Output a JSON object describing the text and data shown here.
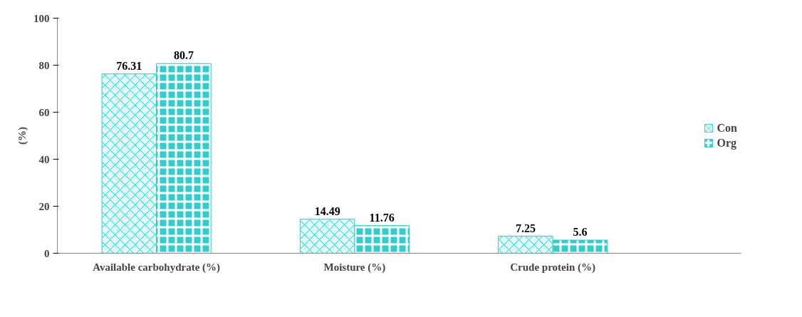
{
  "chart_data": {
    "type": "bar",
    "ylabel": "(%)",
    "categories": [
      "Available carbohydrate (%)",
      "Moisture (%)",
      "Crude protein (%)"
    ],
    "series": [
      {
        "name": "Con",
        "color": "#33cccc",
        "values": [
          76.31,
          14.49,
          7.25
        ]
      },
      {
        "name": "Org",
        "color": "#33cccc",
        "values": [
          80.7,
          11.76,
          5.6
        ]
      }
    ],
    "ylim": [
      0,
      100
    ],
    "yticks": [
      0,
      20,
      40,
      60,
      80,
      100
    ],
    "grid": false,
    "legend": "right",
    "data_labels": true
  }
}
